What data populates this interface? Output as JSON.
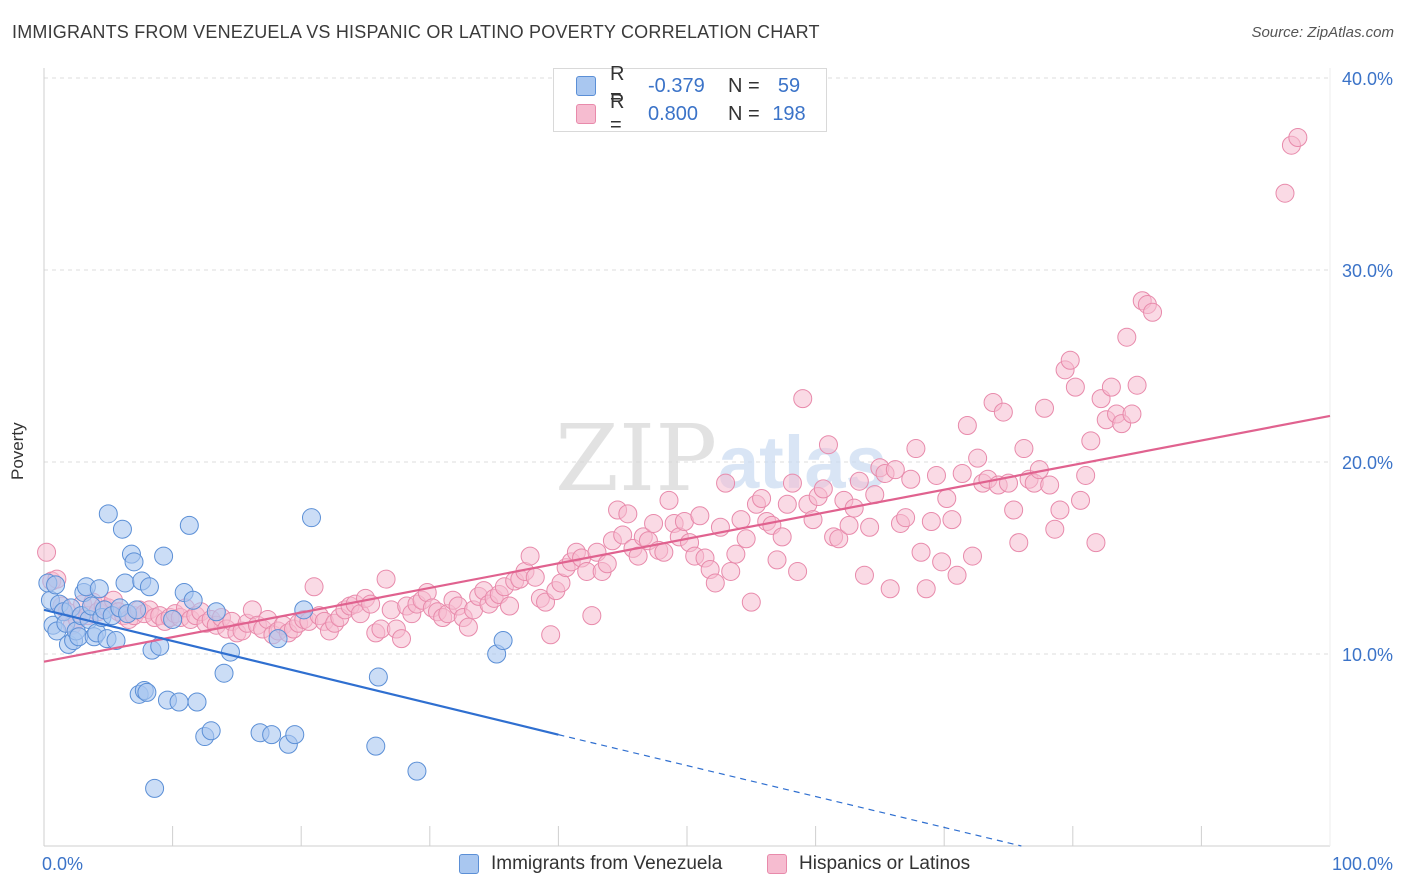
{
  "title": "IMMIGRANTS FROM VENEZUELA VS HISPANIC OR LATINO POVERTY CORRELATION CHART",
  "source": "Source: ZipAtlas.com",
  "watermark": {
    "zip": "ZIP",
    "atlas": "atlas"
  },
  "legend_top": {
    "series_a": {
      "r_label": "R =",
      "r_value": "-0.379",
      "n_label": "N =",
      "n_value": "59"
    },
    "series_b": {
      "r_label": "R =",
      "r_value": "0.800",
      "n_label": "N =",
      "n_value": "198"
    }
  },
  "colors": {
    "blue_fill": "#a9c7f0",
    "blue_stroke": "#5b8fd6",
    "blue_line": "#2f6fd0",
    "pink_fill": "#f6bcd0",
    "pink_stroke": "#e88aab",
    "pink_line": "#e0628f",
    "axis_label": "#3b73c8",
    "grid": "#dddddd"
  },
  "chart_data": {
    "type": "scatter",
    "xlabel": "",
    "ylabel": "Poverty",
    "xlim": [
      0,
      100
    ],
    "ylim": [
      0,
      40
    ],
    "x_tick_labels": [
      "0.0%",
      "100.0%"
    ],
    "y_tick_labels": [
      {
        "value": 10,
        "label": "10.0%"
      },
      {
        "value": 20,
        "label": "20.0%"
      },
      {
        "value": 30,
        "label": "30.0%"
      },
      {
        "value": 40,
        "label": "40.0%"
      }
    ],
    "grid": true,
    "legend_position": "bottom",
    "series": [
      {
        "name": "Immigrants from Venezuela",
        "color": "#a9c7f0",
        "trend": {
          "x0": 0,
          "y0": 12.3,
          "x1": 40,
          "y1": 5.8,
          "dash_to_x": 76,
          "dash_to_y": 0
        },
        "points": [
          [
            0.3,
            13.7
          ],
          [
            0.5,
            12.8
          ],
          [
            0.7,
            11.5
          ],
          [
            0.9,
            13.6
          ],
          [
            1.0,
            11.2
          ],
          [
            1.2,
            12.6
          ],
          [
            1.5,
            12.2
          ],
          [
            1.7,
            11.6
          ],
          [
            1.9,
            10.5
          ],
          [
            2.1,
            12.4
          ],
          [
            2.3,
            10.7
          ],
          [
            2.5,
            11.2
          ],
          [
            2.7,
            10.9
          ],
          [
            2.9,
            12.0
          ],
          [
            3.1,
            13.2
          ],
          [
            3.3,
            13.5
          ],
          [
            3.5,
            11.8
          ],
          [
            3.7,
            12.5
          ],
          [
            3.9,
            10.9
          ],
          [
            4.1,
            11.1
          ],
          [
            4.3,
            13.4
          ],
          [
            4.5,
            11.9
          ],
          [
            4.7,
            12.3
          ],
          [
            4.9,
            10.8
          ],
          [
            5.0,
            17.3
          ],
          [
            5.3,
            12.0
          ],
          [
            5.6,
            10.7
          ],
          [
            5.9,
            12.4
          ],
          [
            6.1,
            16.5
          ],
          [
            6.3,
            13.7
          ],
          [
            6.5,
            12.1
          ],
          [
            6.8,
            15.2
          ],
          [
            7.0,
            14.8
          ],
          [
            7.2,
            12.3
          ],
          [
            7.4,
            7.9
          ],
          [
            7.6,
            13.8
          ],
          [
            7.8,
            8.1
          ],
          [
            8.0,
            8.0
          ],
          [
            8.2,
            13.5
          ],
          [
            8.4,
            10.2
          ],
          [
            8.6,
            3.0
          ],
          [
            9.0,
            10.4
          ],
          [
            9.3,
            15.1
          ],
          [
            9.6,
            7.6
          ],
          [
            10.0,
            11.8
          ],
          [
            10.5,
            7.5
          ],
          [
            10.9,
            13.2
          ],
          [
            11.3,
            16.7
          ],
          [
            11.6,
            12.8
          ],
          [
            11.9,
            7.5
          ],
          [
            12.5,
            5.7
          ],
          [
            13.0,
            6.0
          ],
          [
            13.4,
            12.2
          ],
          [
            14.0,
            9.0
          ],
          [
            14.5,
            10.1
          ],
          [
            16.8,
            5.9
          ],
          [
            17.7,
            5.8
          ],
          [
            18.2,
            10.8
          ],
          [
            19.0,
            5.3
          ],
          [
            19.5,
            5.8
          ],
          [
            20.8,
            17.1
          ],
          [
            20.2,
            12.3
          ],
          [
            25.8,
            5.2
          ],
          [
            26.0,
            8.8
          ],
          [
            29.0,
            3.9
          ],
          [
            35.2,
            10.0
          ],
          [
            35.7,
            10.7
          ]
        ]
      },
      {
        "name": "Hispanics or Latinos",
        "color": "#f6bcd0",
        "trend": {
          "x0": 0,
          "y0": 9.6,
          "x1": 100,
          "y1": 22.4
        },
        "points": [
          [
            0.2,
            15.3
          ],
          [
            0.6,
            13.8
          ],
          [
            1.0,
            13.9
          ],
          [
            1.4,
            12.5
          ],
          [
            1.8,
            12.2
          ],
          [
            2.2,
            11.5
          ],
          [
            2.6,
            11.8
          ],
          [
            3.0,
            12.6
          ],
          [
            3.4,
            12.0
          ],
          [
            3.8,
            12.7
          ],
          [
            4.2,
            12.2
          ],
          [
            4.6,
            12.5
          ],
          [
            5.0,
            12.4
          ],
          [
            5.4,
            12.8
          ],
          [
            5.8,
            12.2
          ],
          [
            6.2,
            12.0
          ],
          [
            6.6,
            11.8
          ],
          [
            7.0,
            12.0
          ],
          [
            7.4,
            12.3
          ],
          [
            7.8,
            12.1
          ],
          [
            8.2,
            12.3
          ],
          [
            8.6,
            11.9
          ],
          [
            9.0,
            12.0
          ],
          [
            9.4,
            11.7
          ],
          [
            9.8,
            11.9
          ],
          [
            10.2,
            12.1
          ],
          [
            10.6,
            11.9
          ],
          [
            11.0,
            12.4
          ],
          [
            11.4,
            11.8
          ],
          [
            11.8,
            12.0
          ],
          [
            12.2,
            12.2
          ],
          [
            12.6,
            11.6
          ],
          [
            13.0,
            11.8
          ],
          [
            13.4,
            11.5
          ],
          [
            13.8,
            11.9
          ],
          [
            14.2,
            11.3
          ],
          [
            14.6,
            11.7
          ],
          [
            15.0,
            11.1
          ],
          [
            15.4,
            11.2
          ],
          [
            15.8,
            11.6
          ],
          [
            16.2,
            12.3
          ],
          [
            16.6,
            11.5
          ],
          [
            17.0,
            11.3
          ],
          [
            17.4,
            11.8
          ],
          [
            17.8,
            11.0
          ],
          [
            18.2,
            11.2
          ],
          [
            18.6,
            11.5
          ],
          [
            19.0,
            11.1
          ],
          [
            19.4,
            11.3
          ],
          [
            19.8,
            11.6
          ],
          [
            20.2,
            11.8
          ],
          [
            20.6,
            11.7
          ],
          [
            21.0,
            13.5
          ],
          [
            21.4,
            12.0
          ],
          [
            21.8,
            11.7
          ],
          [
            22.2,
            11.2
          ],
          [
            22.6,
            11.6
          ],
          [
            23.0,
            11.9
          ],
          [
            23.4,
            12.3
          ],
          [
            23.8,
            12.5
          ],
          [
            24.2,
            12.6
          ],
          [
            24.6,
            12.1
          ],
          [
            25.0,
            12.9
          ],
          [
            25.4,
            12.6
          ],
          [
            25.8,
            11.1
          ],
          [
            26.2,
            11.3
          ],
          [
            26.6,
            13.9
          ],
          [
            27.0,
            12.3
          ],
          [
            27.4,
            11.3
          ],
          [
            27.8,
            10.8
          ],
          [
            28.2,
            12.5
          ],
          [
            28.6,
            12.1
          ],
          [
            29.0,
            12.6
          ],
          [
            29.4,
            12.8
          ],
          [
            29.8,
            13.2
          ],
          [
            30.2,
            12.4
          ],
          [
            30.6,
            12.2
          ],
          [
            31.0,
            11.9
          ],
          [
            31.4,
            12.1
          ],
          [
            31.8,
            12.8
          ],
          [
            32.2,
            12.5
          ],
          [
            32.6,
            11.9
          ],
          [
            33.0,
            11.4
          ],
          [
            33.4,
            12.3
          ],
          [
            33.8,
            13.0
          ],
          [
            34.2,
            13.3
          ],
          [
            34.6,
            12.6
          ],
          [
            35.0,
            12.9
          ],
          [
            35.4,
            13.1
          ],
          [
            35.8,
            13.5
          ],
          [
            36.2,
            12.5
          ],
          [
            36.6,
            13.8
          ],
          [
            37.0,
            13.9
          ],
          [
            37.4,
            14.3
          ],
          [
            37.8,
            15.1
          ],
          [
            38.2,
            14.0
          ],
          [
            38.6,
            12.9
          ],
          [
            39.0,
            12.7
          ],
          [
            39.4,
            11.0
          ],
          [
            39.8,
            13.3
          ],
          [
            40.2,
            13.7
          ],
          [
            40.6,
            14.5
          ],
          [
            41.0,
            14.8
          ],
          [
            41.4,
            15.3
          ],
          [
            41.8,
            15.0
          ],
          [
            42.2,
            14.3
          ],
          [
            42.6,
            12.0
          ],
          [
            43.0,
            15.3
          ],
          [
            43.4,
            14.3
          ],
          [
            43.8,
            14.7
          ],
          [
            44.2,
            15.9
          ],
          [
            44.6,
            17.5
          ],
          [
            45.0,
            16.2
          ],
          [
            45.4,
            17.3
          ],
          [
            45.8,
            15.5
          ],
          [
            46.2,
            15.1
          ],
          [
            46.6,
            16.1
          ],
          [
            47.0,
            15.9
          ],
          [
            47.4,
            16.8
          ],
          [
            47.8,
            15.4
          ],
          [
            48.2,
            15.3
          ],
          [
            48.6,
            18.0
          ],
          [
            49.0,
            16.8
          ],
          [
            49.4,
            16.1
          ],
          [
            49.8,
            16.9
          ],
          [
            50.2,
            15.8
          ],
          [
            50.6,
            15.1
          ],
          [
            51.0,
            17.2
          ],
          [
            51.4,
            15.0
          ],
          [
            51.8,
            14.4
          ],
          [
            52.2,
            13.7
          ],
          [
            52.6,
            16.6
          ],
          [
            53.0,
            18.9
          ],
          [
            53.4,
            14.3
          ],
          [
            53.8,
            15.2
          ],
          [
            54.2,
            17.0
          ],
          [
            54.6,
            16.0
          ],
          [
            55.0,
            12.7
          ],
          [
            55.4,
            17.8
          ],
          [
            55.8,
            18.1
          ],
          [
            56.2,
            16.9
          ],
          [
            56.6,
            16.7
          ],
          [
            57.0,
            14.9
          ],
          [
            57.4,
            16.1
          ],
          [
            57.8,
            17.8
          ],
          [
            58.2,
            18.9
          ],
          [
            58.6,
            14.3
          ],
          [
            59.0,
            23.3
          ],
          [
            59.4,
            17.8
          ],
          [
            59.8,
            17.0
          ],
          [
            60.2,
            18.2
          ],
          [
            60.6,
            18.6
          ],
          [
            61.0,
            20.9
          ],
          [
            61.4,
            16.1
          ],
          [
            61.8,
            16.0
          ],
          [
            62.2,
            18.0
          ],
          [
            62.6,
            16.7
          ],
          [
            63.0,
            17.6
          ],
          [
            63.4,
            19.0
          ],
          [
            63.8,
            14.1
          ],
          [
            64.2,
            16.6
          ],
          [
            64.6,
            18.3
          ],
          [
            65.0,
            19.7
          ],
          [
            65.4,
            19.4
          ],
          [
            65.8,
            13.4
          ],
          [
            66.2,
            19.6
          ],
          [
            66.6,
            16.8
          ],
          [
            67.0,
            17.1
          ],
          [
            67.4,
            19.1
          ],
          [
            67.8,
            20.7
          ],
          [
            68.2,
            15.3
          ],
          [
            68.6,
            13.4
          ],
          [
            69.0,
            16.9
          ],
          [
            69.4,
            19.3
          ],
          [
            69.8,
            14.8
          ],
          [
            70.2,
            18.1
          ],
          [
            70.6,
            17.0
          ],
          [
            71.0,
            14.1
          ],
          [
            71.4,
            19.4
          ],
          [
            71.8,
            21.9
          ],
          [
            72.2,
            15.1
          ],
          [
            72.6,
            20.2
          ],
          [
            73.0,
            18.9
          ],
          [
            73.4,
            19.1
          ],
          [
            73.8,
            23.1
          ],
          [
            74.2,
            18.8
          ],
          [
            74.6,
            22.6
          ],
          [
            75.0,
            18.9
          ],
          [
            75.4,
            17.5
          ],
          [
            75.8,
            15.8
          ],
          [
            76.2,
            20.7
          ],
          [
            76.6,
            19.1
          ],
          [
            77.0,
            18.9
          ],
          [
            77.4,
            19.6
          ],
          [
            77.8,
            22.8
          ],
          [
            78.2,
            18.8
          ],
          [
            78.6,
            16.5
          ],
          [
            79.0,
            17.5
          ],
          [
            79.4,
            24.8
          ],
          [
            79.8,
            25.3
          ],
          [
            80.2,
            23.9
          ],
          [
            80.6,
            18.0
          ],
          [
            81.0,
            19.3
          ],
          [
            81.4,
            21.1
          ],
          [
            81.8,
            15.8
          ],
          [
            82.2,
            23.3
          ],
          [
            82.6,
            22.2
          ],
          [
            83.0,
            23.9
          ],
          [
            83.4,
            22.5
          ],
          [
            83.8,
            22.0
          ],
          [
            84.2,
            26.5
          ],
          [
            84.6,
            22.5
          ],
          [
            85.0,
            24.0
          ],
          [
            85.4,
            28.4
          ],
          [
            85.8,
            28.2
          ],
          [
            86.2,
            27.8
          ],
          [
            96.5,
            34.0
          ],
          [
            97.0,
            36.5
          ],
          [
            97.5,
            36.9
          ]
        ]
      }
    ]
  },
  "bottom_legend": {
    "a": "Immigrants from Venezuela",
    "b": "Hispanics or Latinos"
  }
}
